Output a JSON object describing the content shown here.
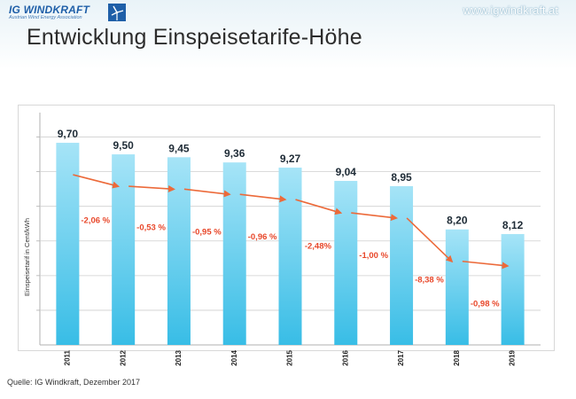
{
  "header": {
    "logo_text": "IG WINDKRAFT",
    "logo_subtext": "Austrian Wind Energy Association",
    "website": "www.igwindkraft.at",
    "title": "Entwicklung Einspeisetarife-Höhe"
  },
  "footer": {
    "source": "Quelle: IG Windkraft, Dezember 2017"
  },
  "colors": {
    "bar_top": "#a6e4f7",
    "bar_bottom": "#38bde6",
    "arrow": "#ec6a3a",
    "pct_text": "#e8472a",
    "logo_blue": "#1f5fa8"
  },
  "icons": {
    "logo_mark": "wind-turbine-logo-icon"
  },
  "chart_data": {
    "type": "bar",
    "categories": [
      "2011",
      "2012",
      "2013",
      "2014",
      "2015",
      "2016",
      "2017",
      "2018",
      "2019"
    ],
    "values": [
      9.7,
      9.5,
      9.45,
      9.36,
      9.27,
      9.04,
      8.95,
      8.2,
      8.12
    ],
    "value_labels": [
      "9,70",
      "9,50",
      "9,45",
      "9,36",
      "9,27",
      "9,04",
      "8,95",
      "8,20",
      "8,12"
    ],
    "change_labels": [
      "-2,06 %",
      "-0,53 %",
      "-0,95 %",
      "-0,96 %",
      "-2,48%",
      "-1,00 %",
      "-8,38 %",
      "-0,98 %"
    ],
    "ylabel": "Einspeisetarif in Cent/kWh",
    "xlabel": "",
    "ylim": [
      6.2,
      10.1
    ],
    "grid": true,
    "trend_arrows": true,
    "legend": "none"
  }
}
